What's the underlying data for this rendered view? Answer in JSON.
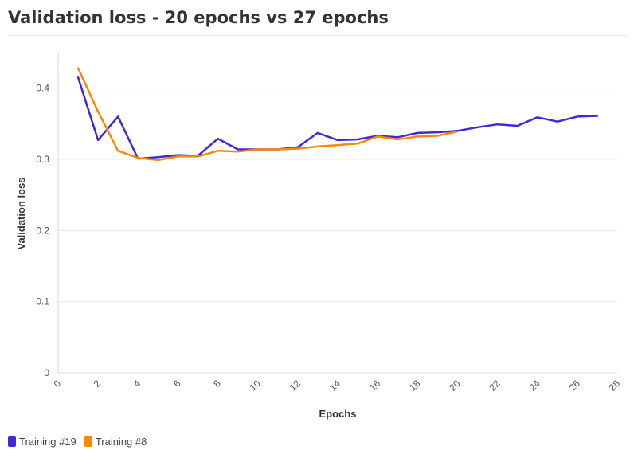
{
  "chart_data": {
    "type": "line",
    "title": "Validation loss - 20 epochs vs 27 epochs",
    "xlabel": "Epochs",
    "ylabel": "Validation loss",
    "xlim": [
      0,
      28
    ],
    "ylim": [
      0,
      0.45
    ],
    "x_ticks": [
      "0",
      "2",
      "4",
      "6",
      "8",
      "10",
      "12",
      "14",
      "16",
      "18",
      "20",
      "22",
      "24",
      "26",
      "28"
    ],
    "y_ticks": [
      "0",
      "0.1",
      "0.2",
      "0.3",
      "0.4"
    ],
    "grid": true,
    "legend_position": "bottom-left",
    "series": [
      {
        "name": "Training #19",
        "color": "#4326d8",
        "x": [
          1,
          2,
          3,
          4,
          5,
          6,
          7,
          8,
          9,
          10,
          11,
          12,
          13,
          14,
          15,
          16,
          17,
          18,
          19,
          20,
          21,
          22,
          23,
          24,
          25,
          26,
          27
        ],
        "values": [
          0.415,
          0.327,
          0.36,
          0.301,
          0.303,
          0.306,
          0.305,
          0.329,
          0.314,
          0.314,
          0.314,
          0.317,
          0.337,
          0.327,
          0.328,
          0.333,
          0.331,
          0.337,
          0.338,
          0.34,
          0.345,
          0.349,
          0.347,
          0.359,
          0.353,
          0.36,
          0.361
        ]
      },
      {
        "name": "Training #8",
        "color": "#f48a0c",
        "x": [
          1,
          2,
          3,
          4,
          5,
          6,
          7,
          8,
          9,
          10,
          11,
          12,
          13,
          14,
          15,
          16,
          17,
          18,
          19,
          20
        ],
        "values": [
          0.428,
          0.367,
          0.312,
          0.302,
          0.299,
          0.304,
          0.304,
          0.312,
          0.311,
          0.314,
          0.314,
          0.315,
          0.318,
          0.32,
          0.322,
          0.332,
          0.328,
          0.332,
          0.333,
          0.339
        ]
      }
    ]
  }
}
